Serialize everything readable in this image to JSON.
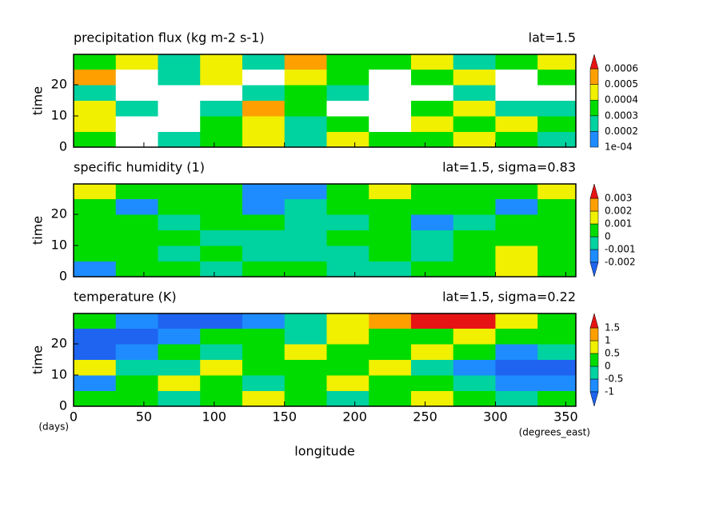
{
  "chart_data": [
    {
      "type": "contour",
      "title": "precipitation flux (kg m-2 s-1)",
      "subtitle": "lat=1.5",
      "ylabel": "time",
      "x": [
        15,
        45,
        75,
        105,
        135,
        165,
        195,
        225,
        255,
        285,
        315,
        345
      ],
      "y": [
        2.5,
        7.5,
        12.5,
        17.5,
        22.5,
        27.5
      ],
      "z": [
        [
          0.0003,
          5e-05,
          0.0002,
          0.0003,
          0.0004,
          0.0002,
          0.0004,
          0.0003,
          0.0003,
          0.0004,
          0.0003,
          0.0002
        ],
        [
          0.0004,
          5e-05,
          5e-05,
          0.0003,
          0.0004,
          0.0002,
          0.0003,
          5e-05,
          0.0004,
          0.0003,
          0.0004,
          0.0003
        ],
        [
          0.0004,
          0.0002,
          5e-05,
          0.0002,
          0.0005,
          0.0003,
          5e-05,
          5e-05,
          0.0003,
          0.0004,
          0.0002,
          0.0002
        ],
        [
          0.0002,
          5e-05,
          5e-05,
          5e-05,
          0.0002,
          0.0003,
          0.0002,
          5e-05,
          5e-05,
          0.0002,
          5e-05,
          5e-05
        ],
        [
          0.0005,
          5e-05,
          0.0002,
          0.0004,
          5e-05,
          0.0004,
          0.0003,
          5e-05,
          0.0003,
          0.0004,
          5e-05,
          0.0003
        ],
        [
          0.0003,
          0.0004,
          0.0002,
          0.0004,
          0.0002,
          0.0005,
          0.0003,
          0.0003,
          0.0004,
          0.0002,
          0.0003,
          0.0004
        ]
      ],
      "levels": [
        {
          "value": 0.0001,
          "label": "1e-04"
        },
        0.0002,
        0.0003,
        0.0004,
        0.0005,
        0.0006
      ],
      "colors": [
        "#ffffff",
        "#1e8cff",
        "#00d2a0",
        "#00dc00",
        "#f0f000",
        "#ffa000",
        "#e61414"
      ],
      "xlim": [
        0,
        357.1875
      ],
      "ylim": [
        0,
        29.75
      ],
      "yticks": [
        0,
        10,
        20
      ]
    },
    {
      "type": "contour",
      "title": "specific humidity (1)",
      "subtitle": "lat=1.5, sigma=0.83",
      "ylabel": "time",
      "x": [
        15,
        45,
        75,
        105,
        135,
        165,
        195,
        225,
        255,
        285,
        315,
        345
      ],
      "y": [
        2.5,
        7.5,
        12.5,
        17.5,
        22.5,
        27.5
      ],
      "z": [
        [
          -0.0015,
          0.0005,
          0.0005,
          -0.0005,
          0.0005,
          0.0005,
          -0.0005,
          -0.0005,
          0.0005,
          0.0005,
          0.0015,
          0.0005
        ],
        [
          0.0005,
          0.0005,
          -0.0005,
          0.0005,
          -0.0005,
          -0.0005,
          -0.0005,
          0.0005,
          -0.0005,
          0.0005,
          0.0015,
          0.0005
        ],
        [
          0.0005,
          0.0005,
          0.0005,
          -0.0005,
          -0.0005,
          -0.0005,
          0.0005,
          0.0005,
          -0.0005,
          0.0005,
          0.0005,
          0.0005
        ],
        [
          0.0005,
          0.0005,
          -0.0005,
          0.0005,
          0.0005,
          -0.0005,
          -0.0005,
          0.0005,
          -0.0015,
          -0.0005,
          0.0005,
          0.0005
        ],
        [
          0.0005,
          -0.0015,
          0.0005,
          0.0005,
          -0.0015,
          -0.0005,
          0.0005,
          0.0005,
          0.0005,
          0.0005,
          -0.0015,
          0.0005
        ],
        [
          0.0015,
          0.0005,
          0.0005,
          0.0005,
          -0.0015,
          -0.0015,
          0.0005,
          0.0015,
          0.0005,
          0.0005,
          0.0005,
          0.0015
        ]
      ],
      "levels": [
        -0.002,
        -0.001,
        0,
        0.001,
        0.002,
        0.003
      ],
      "colors": [
        "#1e64f0",
        "#1e8cff",
        "#00d2a0",
        "#00dc00",
        "#f0f000",
        "#ffa000",
        "#e61414"
      ],
      "xlim": [
        0,
        357.1875
      ],
      "ylim": [
        0,
        29.75
      ],
      "yticks": [
        0,
        10,
        20
      ]
    },
    {
      "type": "contour",
      "title": "temperature (K)",
      "subtitle": "lat=1.5, sigma=0.22",
      "ylabel": "time",
      "xlabel": "longitude",
      "x_units": "(degrees_east)",
      "y_units": "(days)",
      "x": [
        15,
        45,
        75,
        105,
        135,
        165,
        195,
        225,
        255,
        285,
        315,
        345
      ],
      "y": [
        2.5,
        7.5,
        12.5,
        17.5,
        22.5,
        27.5
      ],
      "z": [
        [
          0.25,
          0.25,
          -0.25,
          0.25,
          0.75,
          0.25,
          -0.25,
          0.25,
          0.75,
          0.25,
          -0.25,
          0.25
        ],
        [
          -0.75,
          0.25,
          0.75,
          0.25,
          -0.25,
          0.25,
          0.75,
          0.25,
          0.25,
          -0.25,
          -0.75,
          -0.75
        ],
        [
          0.75,
          -0.25,
          -0.25,
          0.75,
          0.25,
          0.25,
          0.25,
          0.75,
          -0.25,
          -0.75,
          -1.25,
          -1.25
        ],
        [
          -1.25,
          -0.75,
          0.25,
          -0.25,
          0.25,
          0.75,
          0.25,
          0.25,
          0.75,
          0.25,
          -0.75,
          -0.25
        ],
        [
          -1.25,
          -1.25,
          -0.75,
          0.25,
          0.25,
          -0.25,
          0.75,
          0.25,
          0.25,
          0.75,
          0.25,
          0.25
        ],
        [
          0.25,
          -0.75,
          -1.25,
          -1.25,
          -0.75,
          -0.25,
          0.75,
          1.25,
          1.75,
          1.75,
          0.75,
          0.25
        ]
      ],
      "levels": [
        -1,
        -0.5,
        0,
        0.5,
        1,
        1.5
      ],
      "colors": [
        "#1e64f0",
        "#1e8cff",
        "#00d2a0",
        "#00dc00",
        "#f0f000",
        "#ffa000",
        "#e61414"
      ],
      "xlim": [
        0,
        357.1875
      ],
      "ylim": [
        0,
        29.75
      ],
      "yticks": [
        0,
        10,
        20
      ],
      "xticks": [
        0,
        50,
        100,
        150,
        200,
        250,
        300,
        350
      ]
    }
  ]
}
